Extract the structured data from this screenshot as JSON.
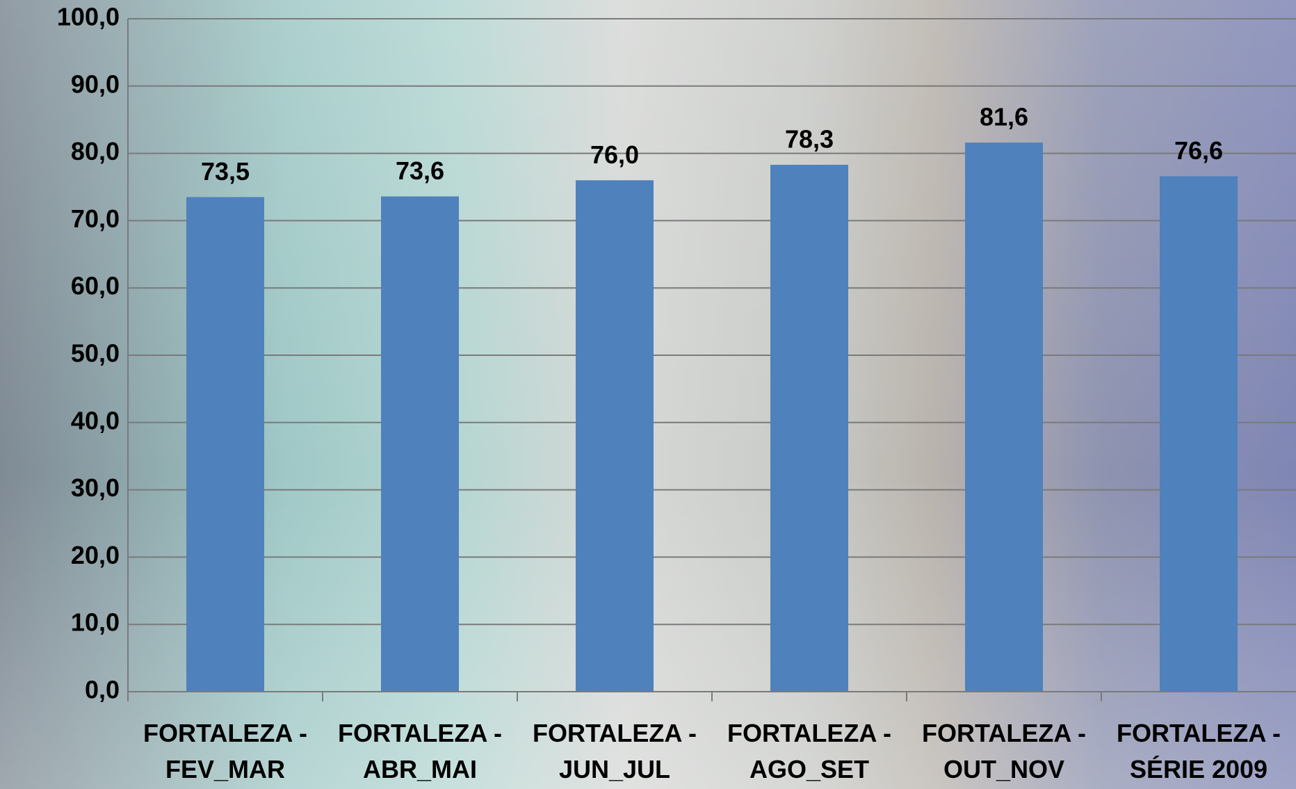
{
  "chart_data": {
    "type": "bar",
    "categories": [
      "FORTALEZA - FEV_MAR",
      "FORTALEZA - ABR_MAI",
      "FORTALEZA - JUN_JUL",
      "FORTALEZA - AGO_SET",
      "FORTALEZA - OUT_NOV",
      "FORTALEZA - SÉRIE 2009"
    ],
    "values": [
      73.5,
      73.6,
      76.0,
      78.3,
      81.6,
      76.6
    ],
    "value_labels": [
      "73,5",
      "73,6",
      "76,0",
      "78,3",
      "81,6",
      "76,6"
    ],
    "color": "#4f81bd",
    "ylim": [
      0,
      100
    ],
    "yticks": [
      {
        "value": 0,
        "label": "0,0"
      },
      {
        "value": 10,
        "label": "10,0"
      },
      {
        "value": 20,
        "label": "20,0"
      },
      {
        "value": 30,
        "label": "30,0"
      },
      {
        "value": 40,
        "label": "40,0"
      },
      {
        "value": 50,
        "label": "50,0"
      },
      {
        "value": 60,
        "label": "60,0"
      },
      {
        "value": 70,
        "label": "70,0"
      },
      {
        "value": 80,
        "label": "80,0"
      },
      {
        "value": 90,
        "label": "90,0"
      },
      {
        "value": 100,
        "label": "100,0"
      }
    ],
    "grid": true
  }
}
